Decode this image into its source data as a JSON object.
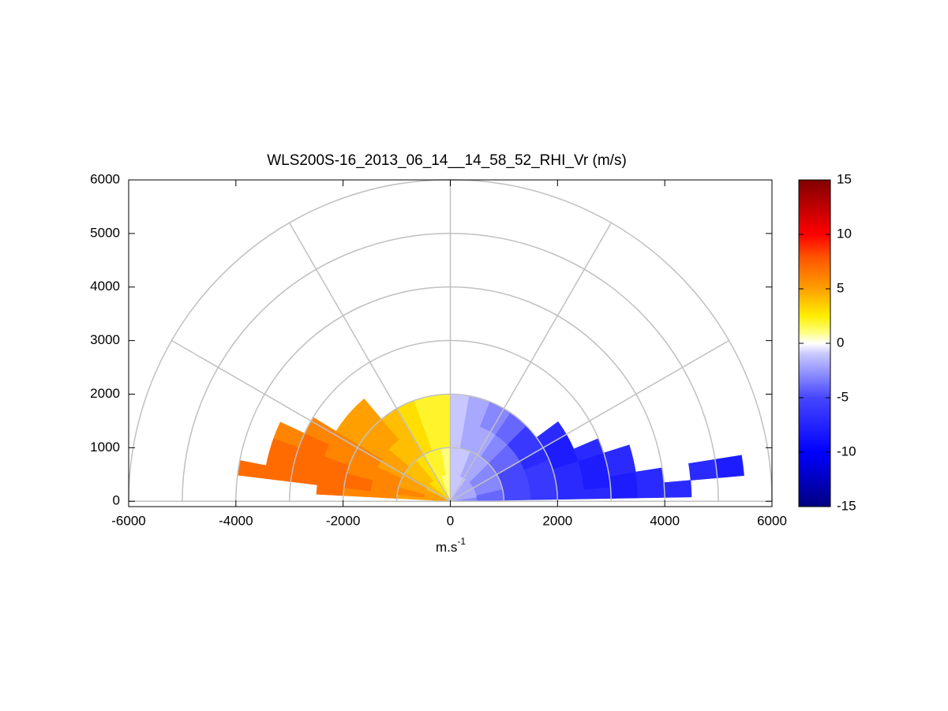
{
  "chart_data": {
    "type": "rhi",
    "title": "WLS200S-16_2013_06_14__14_58_52_RHI_Vr (m/s)",
    "xlabel": {
      "base": "m.s",
      "sup": "-1"
    },
    "xlim": [
      -6000,
      6000
    ],
    "ylim": [
      -100,
      6000
    ],
    "xticks": [
      -6000,
      -4000,
      -2000,
      0,
      2000,
      4000,
      6000
    ],
    "yticks": [
      0,
      1000,
      2000,
      3000,
      4000,
      5000,
      6000
    ],
    "polar_rings": [
      1000,
      2000,
      3000,
      4000,
      5000,
      6000
    ],
    "polar_spokes": [
      0,
      30,
      60,
      90,
      120,
      150,
      180
    ],
    "grid_color": "#c0c0c0",
    "elevations": [
      3,
      7,
      11,
      15,
      20,
      26,
      33,
      40,
      50,
      62,
      75,
      85,
      95,
      105,
      115,
      125,
      135,
      145,
      152,
      158,
      163,
      167,
      171,
      175
    ],
    "range_edges": [
      0,
      500,
      1000,
      1500,
      2000,
      2500,
      3000,
      3500,
      4000,
      4500,
      5000,
      5500
    ],
    "values": [
      [
        -3,
        -4,
        -5,
        -6,
        -7,
        -7,
        -8,
        -7,
        -7,
        null,
        null
      ],
      [
        -3,
        -4,
        -5,
        -6,
        -7,
        -8,
        -8,
        -7,
        null,
        -7,
        -8
      ],
      [
        -2,
        -4,
        -5,
        -6,
        -7,
        -8,
        -7,
        null,
        null,
        null,
        null
      ],
      [
        -2,
        -3,
        -5,
        -6,
        -7,
        -8,
        -7,
        null,
        null,
        null,
        null
      ],
      [
        -2,
        -3,
        -5,
        -6,
        -8,
        -7,
        null,
        null,
        null,
        null,
        null
      ],
      [
        -2,
        -3,
        -5,
        -7,
        -8,
        null,
        null,
        null,
        null,
        null,
        null
      ],
      [
        -2,
        -3,
        -4,
        -6,
        -7,
        null,
        null,
        null,
        null,
        null,
        null
      ],
      [
        -2,
        -3,
        -4,
        -6,
        null,
        null,
        null,
        null,
        null,
        null,
        null
      ],
      [
        -2,
        -2,
        -3,
        -4,
        null,
        null,
        null,
        null,
        null,
        null,
        null
      ],
      [
        -1,
        -2,
        -2,
        -3,
        null,
        null,
        null,
        null,
        null,
        null,
        null
      ],
      [
        -1,
        -1,
        -2,
        -2,
        null,
        null,
        null,
        null,
        null,
        null,
        null
      ],
      [
        -1,
        -1,
        -1,
        -1,
        null,
        null,
        null,
        null,
        null,
        null,
        null
      ],
      [
        1,
        1,
        2,
        2,
        null,
        null,
        null,
        null,
        null,
        null,
        null
      ],
      [
        1,
        2,
        2,
        2,
        null,
        null,
        null,
        null,
        null,
        null,
        null
      ],
      [
        2,
        2,
        3,
        3,
        null,
        null,
        null,
        null,
        null,
        null,
        null
      ],
      [
        3,
        3,
        4,
        4,
        null,
        null,
        null,
        null,
        null,
        null,
        null
      ],
      [
        3,
        4,
        4,
        5,
        5,
        null,
        null,
        null,
        null,
        null,
        null
      ],
      [
        4,
        4,
        5,
        5,
        5,
        null,
        null,
        null,
        null,
        null,
        null
      ],
      [
        4,
        5,
        5,
        6,
        6,
        6,
        null,
        null,
        null,
        null,
        null
      ],
      [
        5,
        5,
        6,
        6,
        6,
        7,
        6,
        null,
        null,
        null,
        null
      ],
      [
        5,
        5,
        6,
        6,
        7,
        7,
        7,
        null,
        null,
        null,
        null
      ],
      [
        5,
        6,
        6,
        7,
        7,
        7,
        7,
        null,
        null,
        null,
        null
      ],
      [
        5,
        6,
        6,
        7,
        7,
        7,
        7,
        7,
        null,
        null,
        null
      ],
      [
        5,
        5,
        6,
        6,
        7,
        null,
        null,
        null,
        null,
        null,
        null
      ]
    ],
    "clim": [
      -15,
      15
    ],
    "cticks": [
      -15,
      -10,
      -5,
      0,
      5,
      10,
      15
    ],
    "colormap": [
      [
        -15,
        "#000080"
      ],
      [
        -10,
        "#0000ff"
      ],
      [
        -5,
        "#4646ff"
      ],
      [
        -1,
        "#c8c8ff"
      ],
      [
        0,
        "#ffffff"
      ],
      [
        1,
        "#ffff80"
      ],
      [
        2.5,
        "#ffee00"
      ],
      [
        5,
        "#ffa000"
      ],
      [
        8,
        "#ff5000"
      ],
      [
        10,
        "#ff0000"
      ],
      [
        15,
        "#800000"
      ]
    ]
  }
}
